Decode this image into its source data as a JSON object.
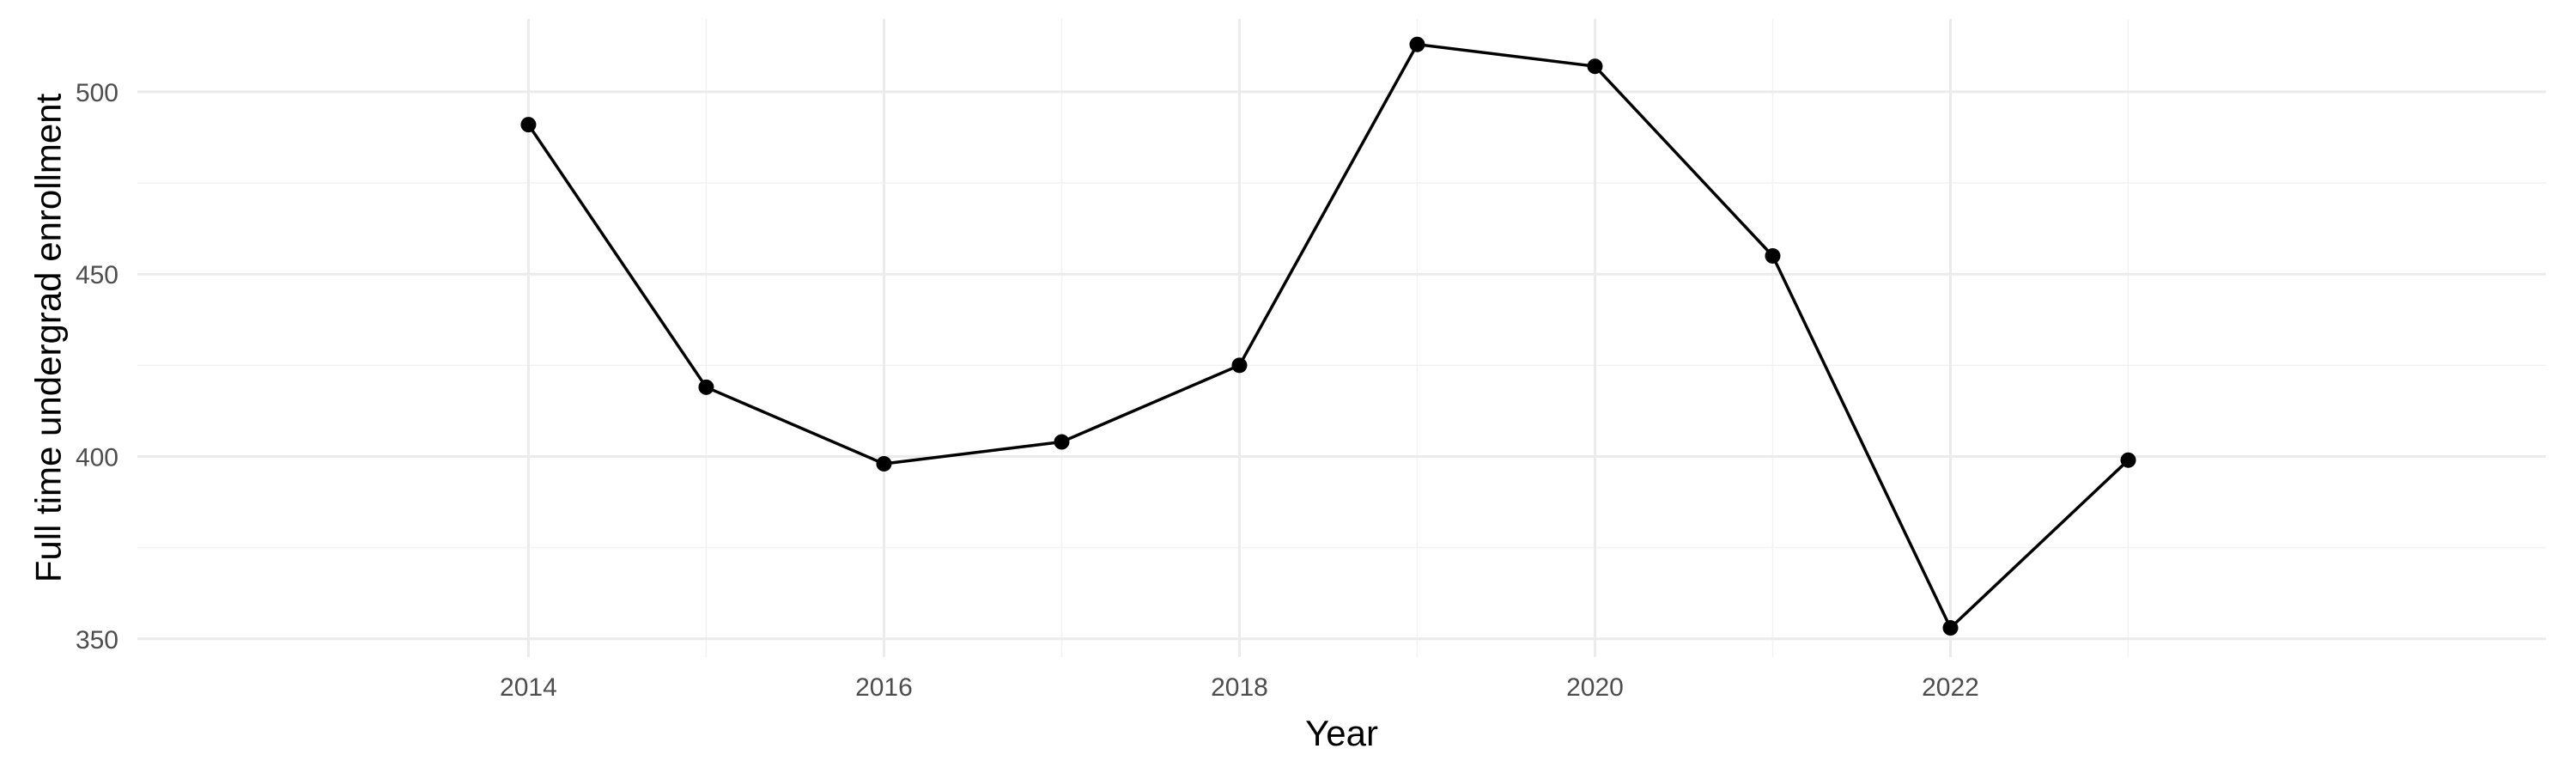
{
  "chart_data": {
    "type": "line",
    "title": "",
    "xlabel": "Year",
    "ylabel": "Full time undergrad enrollment",
    "x": [
      2014,
      2015,
      2016,
      2017,
      2018,
      2019,
      2020,
      2021,
      2022,
      2023
    ],
    "series": [
      {
        "values": [
          491,
          419,
          398,
          404,
          425,
          513,
          507,
          455,
          353,
          399
        ]
      }
    ],
    "xlim": [
      2011.8,
      2025.35
    ],
    "ylim": [
      345,
      520
    ],
    "x_ticks": [
      "2014",
      "2016",
      "2018",
      "2020",
      "2022"
    ],
    "y_ticks": [
      "350",
      "400",
      "450",
      "500"
    ],
    "grid": true,
    "legend": "none",
    "colors": {
      "line": "#000000",
      "point": "#000000",
      "grid": "#ebebeb",
      "tick_text": "#4d4d4d"
    }
  }
}
